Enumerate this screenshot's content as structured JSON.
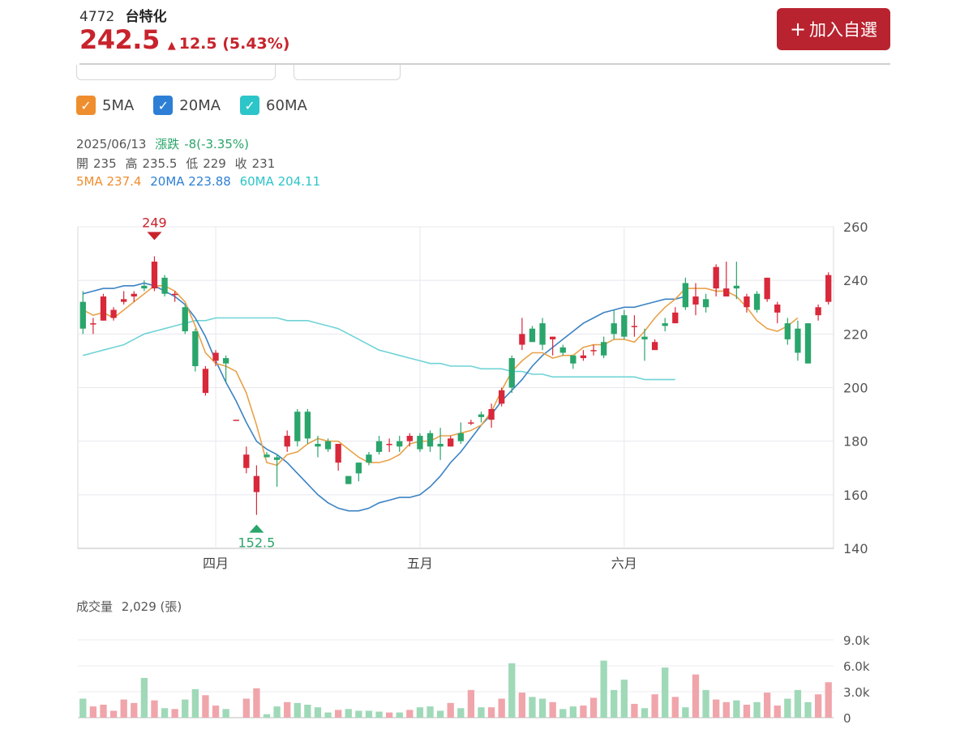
{
  "header": {
    "code": "4772",
    "name": "台特化",
    "price": "242.5",
    "change": "12.5 (5.43%)",
    "add_button": "加入自選"
  },
  "legend": [
    {
      "label": "5MA",
      "color": "#ef8e2f"
    },
    {
      "label": "20MA",
      "color": "#2d7fd6"
    },
    {
      "label": "60MA",
      "color": "#2cc5c9"
    }
  ],
  "info": {
    "date": "2025/06/13",
    "change_label": "漲跌",
    "change_value": "-8(-3.35%)",
    "open_label": "開",
    "open": "235",
    "high_label": "高",
    "high": "235.5",
    "low_label": "低",
    "low": "229",
    "close_label": "收",
    "close": "231",
    "ma5": "5MA 237.4",
    "ma20": "20MA 223.88",
    "ma60": "60MA 204.11"
  },
  "volume": {
    "label": "成交量",
    "value": "2,029 (張)"
  },
  "chart_data": {
    "type": "candlestick",
    "price_axis": {
      "min": 140,
      "max": 260,
      "ticks": [
        "260",
        "240",
        "220",
        "200",
        "180",
        "160",
        "140"
      ]
    },
    "volume_axis": {
      "min": 0,
      "max": 9000,
      "ticks": [
        "9.0k",
        "6.0k",
        "3.0k",
        "0"
      ]
    },
    "month_labels": [
      {
        "label": "四月",
        "index": 13
      },
      {
        "label": "五月",
        "index": 33
      },
      {
        "label": "六月",
        "index": 53
      }
    ],
    "annotations": {
      "high": {
        "label": "249",
        "index": 7,
        "value": 249
      },
      "low": {
        "label": "152.5",
        "index": 17,
        "value": 152.5
      }
    },
    "candles": [
      [
        232,
        222,
        236,
        220
      ],
      [
        224,
        224,
        226,
        220
      ],
      [
        225,
        234,
        235,
        225
      ],
      [
        226,
        229,
        230,
        225
      ],
      [
        232,
        233,
        236,
        231
      ],
      [
        234,
        235,
        236,
        232
      ],
      [
        238,
        237,
        240,
        236
      ],
      [
        237,
        247,
        249,
        236
      ],
      [
        241,
        235,
        242,
        234
      ],
      [
        235,
        235,
        236,
        232
      ],
      [
        230,
        221,
        231,
        220
      ],
      [
        221,
        208,
        222,
        206
      ],
      [
        198,
        207,
        208,
        197
      ],
      [
        210,
        213,
        214,
        208
      ],
      [
        211,
        209,
        212,
        202
      ],
      [
        188,
        188,
        188,
        188
      ],
      [
        170,
        175,
        178,
        168
      ],
      [
        161,
        167,
        171,
        152.5
      ],
      [
        175,
        174,
        176,
        174
      ],
      [
        174,
        173,
        175,
        163
      ],
      [
        178,
        182,
        184,
        176
      ],
      [
        191,
        180,
        192,
        178
      ],
      [
        191,
        181,
        192,
        179
      ],
      [
        179,
        178,
        182,
        174
      ],
      [
        180,
        177,
        181,
        176
      ],
      [
        172,
        179,
        179,
        169
      ],
      [
        167,
        164,
        167,
        164
      ],
      [
        172,
        168,
        172,
        165
      ],
      [
        175,
        172,
        176,
        171
      ],
      [
        180,
        176,
        182,
        175
      ],
      [
        179,
        179,
        181,
        176
      ],
      [
        180,
        178,
        182,
        176
      ],
      [
        180,
        182,
        183,
        178
      ],
      [
        182,
        177,
        183,
        176
      ],
      [
        183,
        178,
        184,
        176
      ],
      [
        179,
        178,
        185,
        173
      ],
      [
        178,
        181,
        182,
        178
      ],
      [
        183,
        180,
        187,
        179
      ],
      [
        187,
        187,
        188,
        186
      ],
      [
        190,
        189,
        191,
        187
      ],
      [
        188,
        192,
        194,
        185
      ],
      [
        194,
        199,
        200,
        193
      ],
      [
        211,
        200,
        212,
        198
      ],
      [
        216,
        220,
        226,
        214
      ],
      [
        222,
        217,
        223,
        217
      ],
      [
        224,
        216,
        226,
        214
      ],
      [
        218,
        219,
        219,
        212
      ],
      [
        215,
        213,
        216,
        212
      ],
      [
        212,
        209,
        212,
        207
      ],
      [
        211,
        212,
        214,
        210
      ],
      [
        214,
        214,
        216,
        212
      ],
      [
        217,
        212,
        219,
        211
      ],
      [
        224,
        220,
        229,
        218
      ],
      [
        227,
        219,
        229,
        218
      ],
      [
        223,
        223,
        227,
        219
      ],
      [
        219,
        218,
        222,
        210
      ],
      [
        214,
        217,
        218,
        216
      ],
      [
        224,
        223,
        226,
        221
      ],
      [
        224,
        228,
        230,
        224
      ],
      [
        239,
        230,
        241,
        229
      ],
      [
        231,
        234,
        239,
        227
      ],
      [
        233,
        230,
        235,
        228
      ],
      [
        237,
        245,
        246,
        234
      ],
      [
        234,
        237,
        247,
        235
      ],
      [
        238,
        237,
        247,
        233
      ],
      [
        230,
        234,
        235,
        228
      ],
      [
        235,
        229,
        236,
        228
      ],
      [
        233,
        241,
        241,
        232
      ],
      [
        228,
        231,
        232,
        224
      ],
      [
        224,
        218,
        226,
        216
      ],
      [
        222,
        213,
        225,
        210
      ],
      [
        224,
        209,
        224,
        209
      ],
      [
        227,
        230,
        231,
        225
      ],
      [
        232,
        242,
        243,
        231
      ]
    ],
    "volume": [
      2200,
      1300,
      1500,
      800,
      2100,
      1700,
      4600,
      2000,
      1100,
      1000,
      2100,
      3300,
      2600,
      1400,
      1000,
      0,
      2200,
      3400,
      400,
      1300,
      1800,
      1700,
      1500,
      1200,
      600,
      900,
      1000,
      800,
      800,
      700,
      600,
      600,
      900,
      1200,
      1300,
      800,
      1700,
      1100,
      3200,
      1200,
      1200,
      2200,
      6300,
      2900,
      2400,
      2200,
      1800,
      1000,
      1300,
      1400,
      2300,
      6600,
      3200,
      4400,
      1600,
      1100,
      2700,
      5800,
      2400,
      1200,
      5000,
      3200,
      2100,
      1800,
      2000,
      1500,
      1800,
      2900,
      1400,
      2200,
      3200,
      1800,
      2700,
      4100
    ],
    "ma5": [
      229,
      227,
      228,
      226,
      229,
      232,
      235,
      238,
      238,
      236,
      232,
      223,
      213,
      209,
      208,
      206,
      198,
      186,
      172,
      171,
      175,
      176,
      179,
      181,
      180,
      180,
      177,
      174,
      172,
      172,
      173,
      175,
      179,
      180,
      180,
      182,
      182,
      183,
      184,
      186,
      191,
      199,
      206,
      210,
      213,
      213,
      211,
      212,
      212,
      215,
      216,
      216,
      218,
      218,
      217,
      221,
      226,
      230,
      233,
      237,
      237,
      237,
      236,
      236,
      234,
      230,
      225,
      222,
      221,
      223,
      226
    ],
    "ma20": [
      235,
      236,
      237,
      237,
      238,
      238,
      239,
      238,
      236,
      234,
      231,
      226,
      219,
      210,
      202,
      195,
      187,
      180,
      177,
      175,
      172,
      168,
      164,
      160,
      157,
      155,
      154,
      154,
      155,
      157,
      158,
      159,
      159,
      160,
      163,
      167,
      172,
      176,
      181,
      186,
      190,
      195,
      199,
      203,
      208,
      212,
      215,
      218,
      221,
      224,
      226,
      228,
      229,
      230,
      230,
      231,
      232,
      233,
      233,
      234
    ],
    "ma60": [
      212,
      213,
      214,
      215,
      216,
      218,
      220,
      221,
      222,
      223,
      224,
      225,
      225,
      226,
      226,
      226,
      226,
      226,
      226,
      226,
      225,
      225,
      225,
      224,
      223,
      222,
      220,
      218,
      216,
      214,
      213,
      212,
      211,
      210,
      209,
      209,
      208,
      208,
      208,
      207,
      207,
      207,
      206,
      206,
      205,
      205,
      204,
      204,
      204,
      204,
      204,
      204,
      204,
      204,
      204,
      203,
      203,
      203,
      203
    ]
  }
}
